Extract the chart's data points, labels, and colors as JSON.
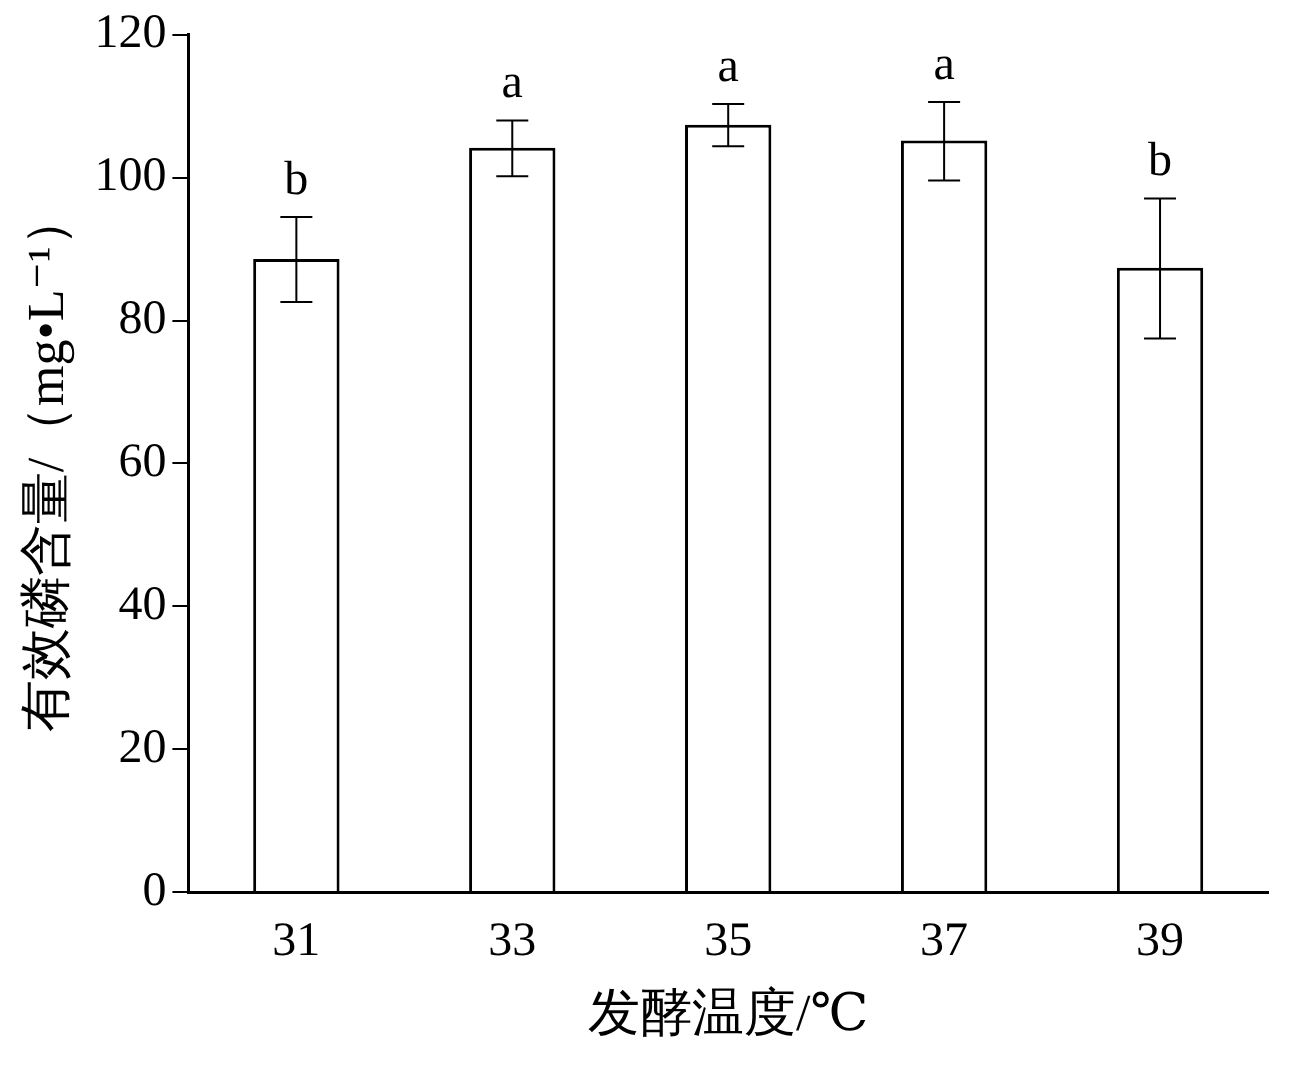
{
  "chart_data": {
    "type": "bar",
    "xlabel": "发酵温度/℃",
    "ylabel": "有效磷含量/（mg•L⁻¹）",
    "categories": [
      "31",
      "33",
      "35",
      "37",
      "39"
    ],
    "values": [
      88.6,
      104.2,
      107.4,
      105.2,
      87.4
    ],
    "errors": [
      [
        82.6,
        94.5
      ],
      [
        100.2,
        108.0
      ],
      [
        104.4,
        110.3
      ],
      [
        99.6,
        110.6
      ],
      [
        77.5,
        97.1
      ]
    ],
    "color": "#ffffff",
    "ylim": [
      0,
      120
    ],
    "yticks": [
      0,
      20,
      40,
      60,
      80,
      100,
      120
    ],
    "grid": false,
    "legend": false,
    "annotations": [
      {
        "text": "b",
        "x": "31",
        "y": 94.5
      },
      {
        "text": "a",
        "x": "33",
        "y": 108.0
      },
      {
        "text": "a",
        "x": "35",
        "y": 110.3
      },
      {
        "text": "a",
        "x": "37",
        "y": 110.6
      },
      {
        "text": "b",
        "x": "39",
        "y": 97.1
      }
    ]
  }
}
